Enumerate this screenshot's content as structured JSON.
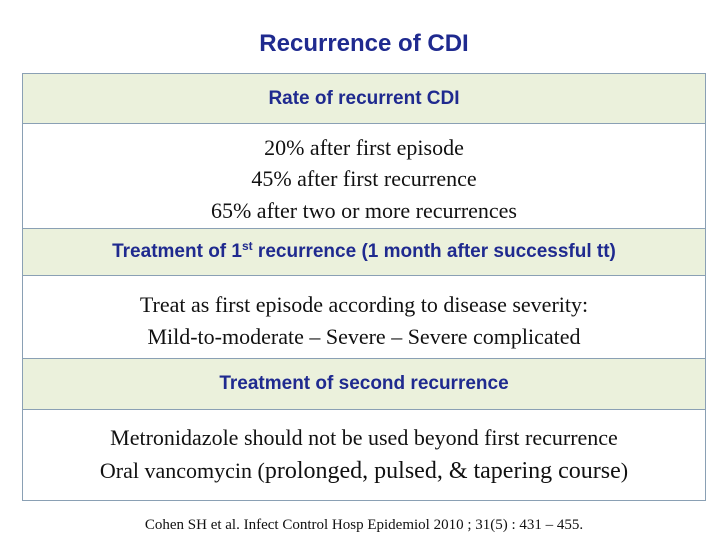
{
  "title": "Recurrence of CDI",
  "sections": {
    "rate": {
      "header": "Rate of recurrent CDI",
      "lines": [
        "20% after first episode",
        "45% after first recurrence",
        "65% after two or more recurrences"
      ]
    },
    "first_recurrence": {
      "header_pre": "Treatment of 1",
      "header_sup": "st",
      "header_post": " recurrence (1 month after successful tt)",
      "lines": [
        "Treat as first episode according to disease severity:",
        "Mild-to-moderate – Severe – Severe complicated"
      ]
    },
    "second_recurrence": {
      "header": "Treatment of second recurrence",
      "line1": "Metronidazole should not be used beyond first recurrence",
      "line2_pre": "Oral vancomycin (",
      "line2_big": "prolonged, pulsed, & tapering course",
      "line2_post": ")"
    }
  },
  "citation": "Cohen SH et al. Infect Control Hosp Epidemiol 2010 ; 31(5) : 431 – 455."
}
